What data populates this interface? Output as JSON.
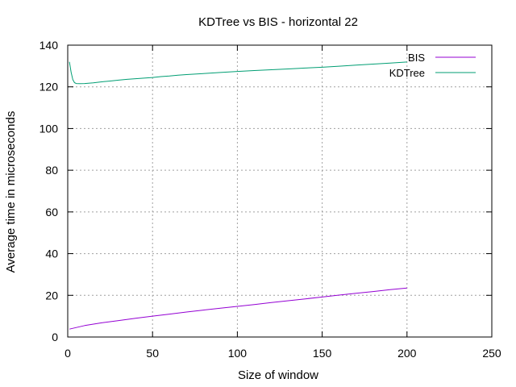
{
  "chart_data": {
    "type": "line",
    "title": "KDTree vs BIS - horizontal 22",
    "xlabel": "Size of window",
    "ylabel": "Average time in microseconds",
    "xlim": [
      0,
      250
    ],
    "ylim": [
      0,
      140
    ],
    "xticks": [
      0,
      50,
      100,
      150,
      200,
      250
    ],
    "yticks": [
      0,
      20,
      40,
      60,
      80,
      100,
      120,
      140
    ],
    "grid": true,
    "legend_position": "top-right",
    "series": [
      {
        "name": "BIS",
        "color": "#9400d3",
        "x": [
          1,
          10,
          20,
          30,
          40,
          50,
          60,
          70,
          80,
          90,
          100,
          110,
          120,
          130,
          140,
          150,
          160,
          170,
          180,
          190,
          200
        ],
        "y": [
          3.8,
          5.5,
          6.8,
          7.9,
          9.0,
          10.0,
          11.0,
          12.0,
          12.9,
          13.8,
          14.7,
          15.6,
          16.5,
          17.4,
          18.3,
          19.2,
          20.1,
          21.0,
          21.8,
          22.7,
          23.5
        ]
      },
      {
        "name": "KDTree",
        "color": "#009e73",
        "x": [
          1,
          2,
          3,
          4,
          5,
          7,
          10,
          15,
          20,
          25,
          30,
          35,
          40,
          45,
          50,
          55,
          60,
          65,
          70,
          80,
          90,
          100,
          110,
          120,
          130,
          140,
          150,
          160,
          170,
          180,
          190,
          200
        ],
        "y": [
          132.0,
          127.0,
          123.5,
          122.0,
          121.6,
          121.5,
          121.6,
          121.9,
          122.4,
          122.8,
          123.2,
          123.6,
          123.9,
          124.2,
          124.5,
          124.9,
          125.2,
          125.6,
          125.9,
          126.4,
          126.9,
          127.4,
          127.8,
          128.2,
          128.6,
          129.0,
          129.4,
          129.9,
          130.4,
          130.9,
          131.4,
          131.9
        ]
      }
    ]
  }
}
